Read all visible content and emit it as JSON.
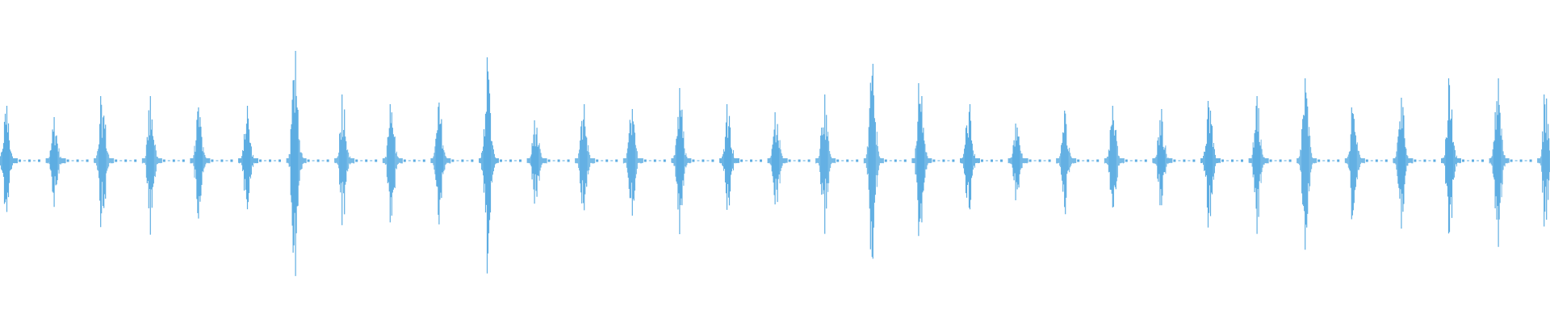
{
  "chart_data": {
    "type": "line",
    "title": "",
    "xlabel": "",
    "ylabel": "",
    "ylim": [
      -1,
      1
    ],
    "grid": false,
    "axes_visible": false,
    "color": "#5DADE2",
    "series": [
      {
        "burst_peak_amplitudes": [
          0.34,
          0.27,
          0.4,
          0.4,
          0.33,
          0.34,
          0.68,
          0.41,
          0.35,
          0.36,
          0.64,
          0.25,
          0.35,
          0.32,
          0.45,
          0.35,
          0.3,
          0.41,
          0.6,
          0.48,
          0.35,
          0.23,
          0.31,
          0.34,
          0.32,
          0.37,
          0.4,
          0.51,
          0.33,
          0.39,
          0.51,
          0.51,
          0.41
        ]
      }
    ]
  }
}
